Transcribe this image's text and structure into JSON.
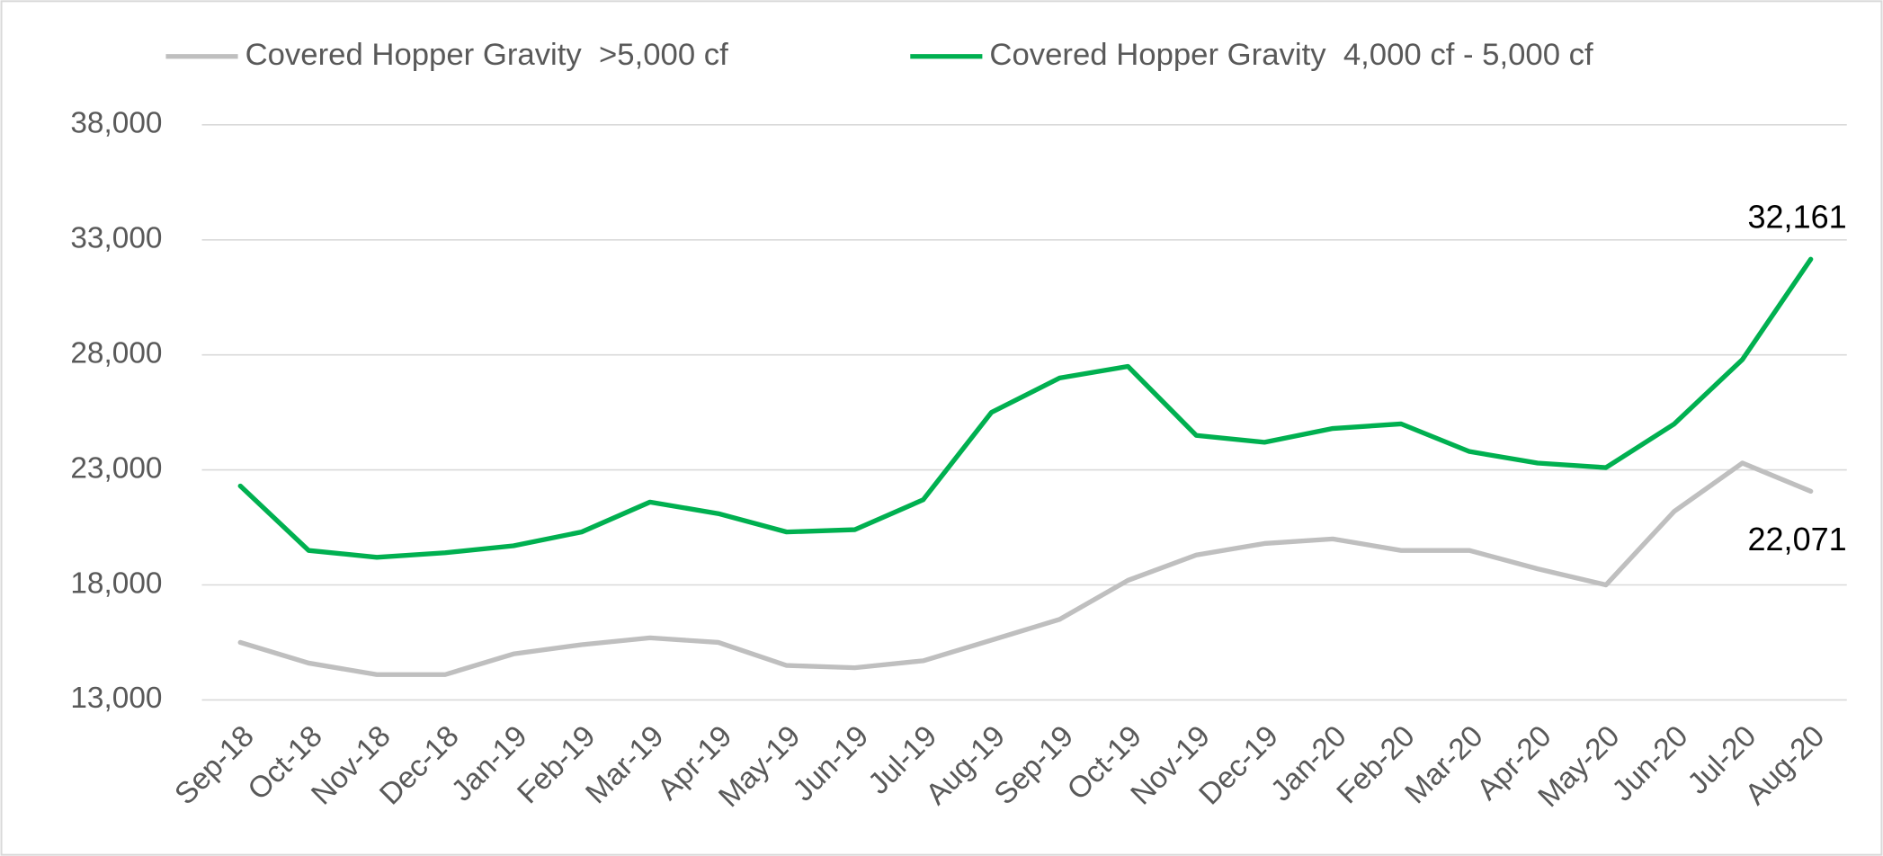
{
  "chart_data": {
    "type": "line",
    "categories": [
      "Sep-18",
      "Oct-18",
      "Nov-18",
      "Dec-18",
      "Jan-19",
      "Feb-19",
      "Mar-19",
      "Apr-19",
      "May-19",
      "Jun-19",
      "Jul-19",
      "Aug-19",
      "Sep-19",
      "Oct-19",
      "Nov-19",
      "Dec-19",
      "Jan-20",
      "Feb-20",
      "Mar-20",
      "Apr-20",
      "May-20",
      "Jun-20",
      "Jul-20",
      "Aug-20"
    ],
    "series": [
      {
        "name": "Covered Hopper Gravity  >5,000 cf",
        "color": "#bfbfbf",
        "values": [
          15500,
          14600,
          14100,
          14100,
          15000,
          15400,
          15700,
          15500,
          14500,
          14400,
          14700,
          15600,
          16500,
          18200,
          19300,
          19800,
          20000,
          19500,
          19500,
          18700,
          18000,
          21200,
          23300,
          22071
        ],
        "value_labels": [
          null,
          null,
          null,
          null,
          null,
          null,
          null,
          null,
          null,
          null,
          null,
          null,
          null,
          null,
          null,
          null,
          null,
          null,
          null,
          null,
          null,
          null,
          null,
          "22,071"
        ]
      },
      {
        "name": "Covered Hopper Gravity  4,000 cf - 5,000 cf",
        "color": "#00b050",
        "values": [
          22300,
          19500,
          19200,
          19400,
          19700,
          20300,
          21600,
          21100,
          20300,
          20400,
          21700,
          25500,
          27000,
          27500,
          24500,
          24200,
          24800,
          25000,
          23800,
          23300,
          23100,
          25000,
          27800,
          32161
        ],
        "value_labels": [
          null,
          null,
          null,
          null,
          null,
          null,
          null,
          null,
          null,
          null,
          null,
          null,
          null,
          null,
          null,
          null,
          null,
          null,
          null,
          null,
          null,
          null,
          null,
          "32,161"
        ]
      }
    ],
    "ylim": [
      13000,
      38000
    ],
    "yticks": [
      {
        "value": 13000,
        "label": "13,000"
      },
      {
        "value": 18000,
        "label": "18,000"
      },
      {
        "value": 23000,
        "label": "23,000"
      },
      {
        "value": 28000,
        "label": "28,000"
      },
      {
        "value": 33000,
        "label": "33,000"
      },
      {
        "value": 38000,
        "label": "38,000"
      }
    ],
    "grid": true,
    "legend": "top"
  }
}
